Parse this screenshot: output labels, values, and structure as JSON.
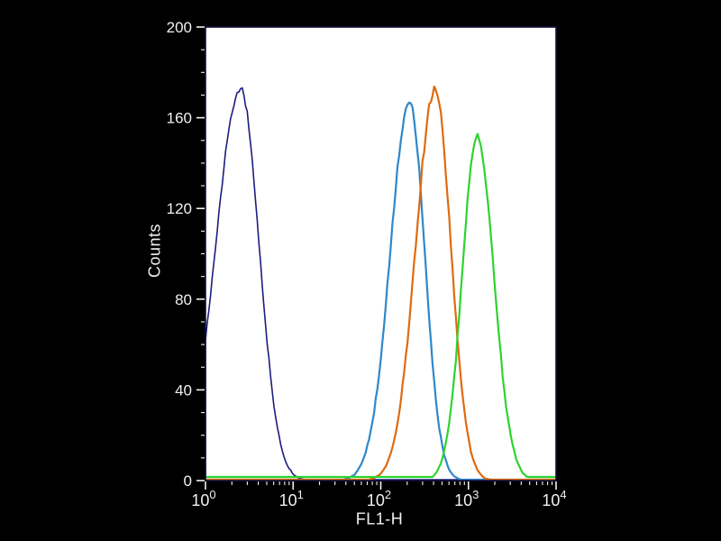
{
  "chart_data": {
    "type": "line",
    "subtype": "flow-cytometry-histogram",
    "title": "",
    "xlabel": "FL1-H",
    "ylabel": "Counts",
    "x_scale": "log10",
    "x_log_range": [
      0,
      4
    ],
    "ylim": [
      0,
      200
    ],
    "grid": false,
    "legend": "none",
    "bg_color": "#000000",
    "plot_bg_color": "#ffffff",
    "frame_color": "#10103a",
    "tick_color": "#f0f0f0",
    "tick_label_color": "#f0f0f0",
    "y_ticks": [
      0,
      40,
      80,
      120,
      160,
      200
    ],
    "y_minor_step": 10,
    "x_ticks": [
      {
        "log": 0,
        "base": "10",
        "exp": "0"
      },
      {
        "log": 1,
        "base": "10",
        "exp": "1"
      },
      {
        "log": 2,
        "base": "10",
        "exp": "2"
      },
      {
        "log": 3,
        "base": "10",
        "exp": "3"
      },
      {
        "log": 4,
        "base": "10",
        "exp": "4"
      }
    ],
    "series": [
      {
        "name": "series-navy",
        "color": "#1c1c80",
        "peak_x": 2.5,
        "peak_log10_x": 0.4,
        "peak_count": 173,
        "sigma_left": 0.28,
        "sigma_right": 0.21,
        "baseline": 0.4,
        "line_width": 1.6,
        "noise": 2.5,
        "seed": 11
      },
      {
        "name": "series-blue",
        "color": "#2f87c9",
        "peak_x": 214,
        "peak_log10_x": 2.33,
        "peak_count": 167,
        "sigma_left": 0.22,
        "sigma_right": 0.17,
        "baseline": 0.4,
        "line_width": 2.2,
        "noise": 2.5,
        "seed": 23
      },
      {
        "name": "series-orange",
        "color": "#e06a0e",
        "peak_x": 417,
        "peak_log10_x": 2.62,
        "peak_count": 172,
        "sigma_left": 0.22,
        "sigma_right": 0.18,
        "baseline": 0.4,
        "line_width": 2.2,
        "noise": 2.5,
        "seed": 37
      },
      {
        "name": "series-green",
        "color": "#2ed32e",
        "peak_x": 1260,
        "peak_log10_x": 3.1,
        "peak_count": 151,
        "sigma_left": 0.17,
        "sigma_right": 0.19,
        "baseline": 1.6,
        "line_width": 2.2,
        "noise": 2.5,
        "seed": 51
      }
    ]
  }
}
